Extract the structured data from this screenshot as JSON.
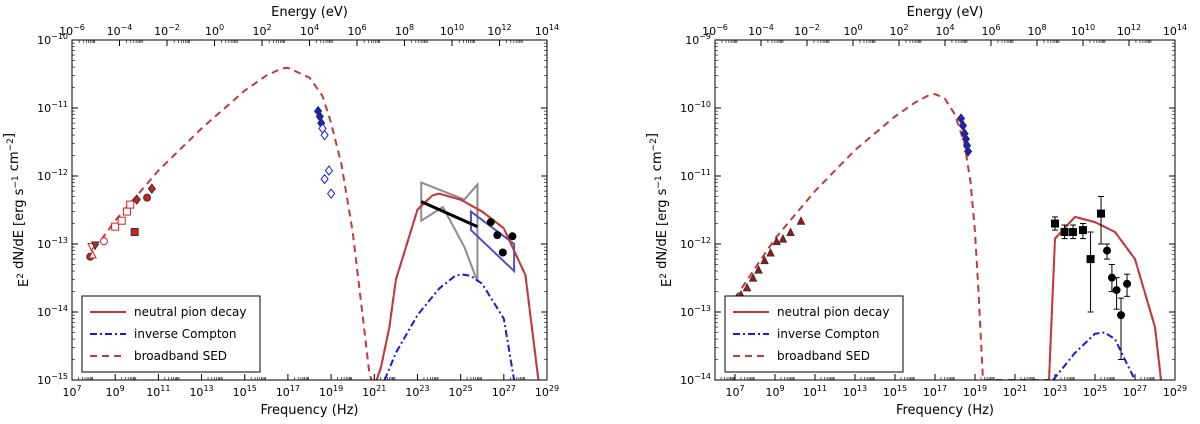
{
  "chart_data": [
    {
      "type": "line",
      "panel": "left",
      "xlabel": "Frequency (Hz)",
      "ylabel": "E^2 dN/dE [erg s^-1 cm^-2]",
      "top_xlabel": "Energy (eV)",
      "xscale": "log",
      "yscale": "log",
      "xlim": [
        10000000.0,
        1e+29
      ],
      "ylim": [
        1e-15,
        1e-10
      ],
      "top_xlim": [
        1e-06,
        100000000000000.0
      ],
      "x_ticks": [
        "10^7",
        "10^9",
        "10^11",
        "10^13",
        "10^15",
        "10^17",
        "10^19",
        "10^21",
        "10^23",
        "10^25",
        "10^27",
        "10^29"
      ],
      "y_ticks": [
        "10^-15",
        "10^-14",
        "10^-13",
        "10^-12",
        "10^-11",
        "10^-10"
      ],
      "top_ticks": [
        "10^-6",
        "10^-4",
        "10^-2",
        "10^0",
        "10^2",
        "10^4",
        "10^6",
        "10^8",
        "10^10",
        "10^12",
        "10^14"
      ],
      "legend_position": "lower-left",
      "legend": [
        {
          "name": "neutral pion decay",
          "style": "solid",
          "color": "#c1393c"
        },
        {
          "name": "inverse Compton",
          "style": "dashdot",
          "color": "#1a1adb"
        },
        {
          "name": "broadband SED",
          "style": "dashed",
          "color": "#c1393c"
        }
      ],
      "series": [
        {
          "name": "broadband SED",
          "style": "dashed",
          "color": "#c1393c",
          "x": [
            50000000.0,
            1000000000.0,
            100000000000.0,
            10000000000000.0,
            1000000000000000.0,
            1e+16,
            5e+16,
            1e+17,
            1e+18,
            4e+18,
            1e+19,
            3e+19,
            1e+20,
            3e+20,
            6e+20,
            1e+21,
            2e+21,
            5e+21,
            1e+22,
            1e+23,
            5e+23,
            1e+24,
            1e+25,
            1e+26,
            1e+27,
            1e+28,
            4e+28
          ],
          "y": [
            6e-14,
            2.2e-13,
            1.2e-12,
            5e-12,
            1.8e-11,
            3e-11,
            3.8e-11,
            3.9e-11,
            2.8e-11,
            1.5e-11,
            6e-12,
            1.5e-12,
            1.5e-13,
            8e-15,
            1.2e-15,
            8e-16,
            1.5e-15,
            6e-15,
            3e-14,
            3.2e-13,
            5.2e-13,
            5.5e-13,
            4.5e-13,
            3e-13,
            1.7e-13,
            3.5e-14,
            1e-15
          ]
        },
        {
          "name": "neutral pion decay",
          "style": "solid",
          "color": "#c1393c",
          "x": [
            1e+21,
            2e+21,
            5e+21,
            1e+22,
            1e+23,
            5e+23,
            1e+24,
            1e+25,
            1e+26,
            1e+27,
            1e+28,
            4e+28
          ],
          "y": [
            8e-16,
            1.5e-15,
            6e-15,
            3e-14,
            3.2e-13,
            5.2e-13,
            5.5e-13,
            4.5e-13,
            3e-13,
            1.7e-13,
            3.5e-14,
            1e-15
          ]
        },
        {
          "name": "inverse Compton",
          "style": "dashdot",
          "color": "#1a1adb",
          "x": [
            3e+21,
            1e+22,
            1e+23,
            1e+24,
            5e+24,
            1e+25,
            3e+25,
            1e+26,
            1e+27,
            3e+27
          ],
          "y": [
            1e-15,
            2.5e-15,
            9e-15,
            2.2e-14,
            3.3e-14,
            3.6e-14,
            3.4e-14,
            2.6e-14,
            8e-15,
            1e-15
          ]
        }
      ],
      "points": [
        {
          "x": 70000000.0,
          "y": 6.5e-14,
          "color": "#d02020",
          "filled": true,
          "marker": "circle"
        },
        {
          "x": 80000000.0,
          "y": 9e-14,
          "color": "#d02020",
          "filled": false,
          "marker": "triangle-down"
        },
        {
          "x": 90000000.0,
          "y": 7e-14,
          "color": "#d02020",
          "filled": false,
          "marker": "triangle"
        },
        {
          "x": 120000000.0,
          "y": 9.5e-14,
          "color": "#d02020",
          "filled": true,
          "marker": "triangle-down"
        },
        {
          "x": 300000000.0,
          "y": 1.1e-13,
          "color": "#d02020",
          "filled": false,
          "marker": "circle"
        },
        {
          "x": 1000000000.0,
          "y": 1.8e-13,
          "color": "#d02020",
          "filled": false,
          "marker": "square"
        },
        {
          "x": 2000000000.0,
          "y": 2.2e-13,
          "color": "#d02020",
          "filled": false,
          "marker": "square"
        },
        {
          "x": 3500000000.0,
          "y": 3e-13,
          "color": "#d02020",
          "filled": false,
          "marker": "square"
        },
        {
          "x": 5000000000.0,
          "y": 3.8e-13,
          "color": "#d02020",
          "filled": false,
          "marker": "square"
        },
        {
          "x": 8000000000.0,
          "y": 1.5e-13,
          "color": "#d02020",
          "filled": true,
          "marker": "square"
        },
        {
          "x": 10000000000.0,
          "y": 4.5e-13,
          "color": "#d02020",
          "filled": true,
          "marker": "diamond"
        },
        {
          "x": 30000000000.0,
          "y": 4.8e-13,
          "color": "#d02020",
          "filled": true,
          "marker": "circle"
        },
        {
          "x": 50000000000.0,
          "y": 6.5e-13,
          "color": "#d02020",
          "filled": true,
          "marker": "diamond"
        },
        {
          "x": 2.5e+18,
          "y": 9e-12,
          "color": "#1a1adb",
          "filled": true,
          "marker": "diamond"
        },
        {
          "x": 3e+18,
          "y": 7.5e-12,
          "color": "#1a1adb",
          "filled": true,
          "marker": "diamond"
        },
        {
          "x": 3.5e+18,
          "y": 6e-12,
          "color": "#1a1adb",
          "filled": true,
          "marker": "diamond"
        },
        {
          "x": 4e+18,
          "y": 5e-12,
          "color": "#1a1adb",
          "filled": false,
          "marker": "diamond"
        },
        {
          "x": 5e+18,
          "y": 4e-12,
          "color": "#1a1adb",
          "filled": false,
          "marker": "diamond"
        },
        {
          "x": 5e+18,
          "y": 9e-13,
          "color": "#1a1adb",
          "filled": false,
          "marker": "diamond"
        },
        {
          "x": 8e+18,
          "y": 1.2e-12,
          "color": "#1a1adb",
          "filled": false,
          "marker": "diamond"
        },
        {
          "x": 1e+19,
          "y": 5.5e-13,
          "color": "#1a1adb",
          "filled": false,
          "marker": "diamond"
        },
        {
          "x": 2.5e+26,
          "y": 2.1e-13,
          "color": "#000000",
          "filled": true,
          "marker": "circle"
        },
        {
          "x": 5e+26,
          "y": 1.35e-13,
          "color": "#000000",
          "filled": true,
          "marker": "circle"
        },
        {
          "x": 9e+26,
          "y": 7.5e-14,
          "color": "#000000",
          "filled": true,
          "marker": "circle"
        },
        {
          "x": 2.5e+27,
          "y": 1.3e-13,
          "color": "#000000",
          "filled": true,
          "marker": "circle"
        }
      ],
      "fermi_line": {
        "x": [
          1.5e+23,
          6e+25
        ],
        "y": [
          4.2e-13,
          1.8e-13
        ]
      },
      "bowtie_gray": {
        "x": [
          1.5e+23,
          1.5e+24,
          1.5e+25,
          6e+25,
          6e+25,
          1.5e+25,
          1.5e+24,
          1.5e+23
        ],
        "y": [
          8e-13,
          6e-13,
          4.5e-13,
          7.5e-13,
          2.8e-14,
          9e-14,
          3.5e-13,
          2.2e-13
        ]
      },
      "bowtie_blue": {
        "x": [
          3e+25,
          3e+27,
          3e+27,
          3e+25
        ],
        "y": [
          3e-13,
          1e-13,
          4e-14,
          1.6e-13
        ]
      }
    },
    {
      "type": "line",
      "panel": "right",
      "xlabel": "Frequency (Hz)",
      "ylabel": "E^2 dN/dE [erg s^-1 cm^-2]",
      "top_xlabel": "Energy (eV)",
      "xscale": "log",
      "yscale": "log",
      "xlim": [
        1000000.0,
        1e+29
      ],
      "ylim": [
        1e-14,
        1e-09
      ],
      "top_xlim": [
        1e-06,
        100000000000000.0
      ],
      "x_ticks": [
        "10^7",
        "10^9",
        "10^11",
        "10^13",
        "10^15",
        "10^17",
        "10^19",
        "10^21",
        "10^23",
        "10^25",
        "10^27",
        "10^29"
      ],
      "y_ticks": [
        "10^-14",
        "10^-13",
        "10^-12",
        "10^-11",
        "10^-10",
        "10^-9"
      ],
      "top_ticks": [
        "10^-6",
        "10^-4",
        "10^-2",
        "10^0",
        "10^2",
        "10^4",
        "10^6",
        "10^8",
        "10^10",
        "10^12",
        "10^14"
      ],
      "legend_position": "lower-left",
      "legend": [
        {
          "name": "neutral pion decay",
          "style": "solid",
          "color": "#c1393c"
        },
        {
          "name": "inverse Compton",
          "style": "dashdot",
          "color": "#1a1adb"
        },
        {
          "name": "broadband SED",
          "style": "dashed",
          "color": "#c1393c"
        }
      ],
      "series": [
        {
          "name": "broadband SED",
          "style": "dashed",
          "color": "#c1393c",
          "x": [
            10000000.0,
            1000000000.0,
            100000000000.0,
            10000000000000.0,
            1000000000000000.0,
            1e+16,
            5e+16,
            1e+17,
            3e+17,
            1e+18,
            3e+18,
            6e+18,
            1e+19,
            1.5e+19,
            2.5e+19,
            5e+22,
            1e+23,
            1e+24,
            1e+25,
            1e+26,
            1e+27,
            1e+28,
            2e+28
          ],
          "y": [
            1.6e-13,
            1.2e-12,
            6e-12,
            2.4e-11,
            7.5e-11,
            1.2e-10,
            1.55e-10,
            1.6e-10,
            1.4e-10,
            8e-11,
            3e-11,
            8e-12,
            1.5e-12,
            2e-13,
            1e-14,
            1e-14,
            1.2e-12,
            2.5e-12,
            2.1e-12,
            1.5e-12,
            6e-13,
            6e-14,
            1e-14
          ]
        },
        {
          "name": "neutral pion decay",
          "style": "solid",
          "color": "#c1393c",
          "x": [
            5e+22,
            1e+23,
            1e+24,
            1e+25,
            1e+26,
            1e+27,
            1e+28,
            2e+28
          ],
          "y": [
            1e-14,
            1.2e-12,
            2.5e-12,
            2.1e-12,
            1.5e-12,
            6e-13,
            6e-14,
            1e-14
          ]
        },
        {
          "name": "inverse Compton",
          "style": "dashdot",
          "color": "#1a1adb",
          "x": [
            8e+22,
            1e+24,
            1e+25,
            3e+25,
            1e+26,
            5e+26,
            1e+27
          ],
          "y": [
            1e-14,
            2.5e-14,
            4.8e-14,
            5e-14,
            4e-14,
            1.5e-14,
            1e-14
          ]
        }
      ],
      "points": [
        {
          "x": 12000000.0,
          "y": 1.6e-13,
          "color": "#b01010",
          "filled": true,
          "marker": "triangle"
        },
        {
          "x": 20000000.0,
          "y": 1.8e-13,
          "color": "#b01010",
          "filled": true,
          "marker": "triangle"
        },
        {
          "x": 40000000.0,
          "y": 2.3e-13,
          "color": "#b01010",
          "filled": true,
          "marker": "triangle"
        },
        {
          "x": 80000000.0,
          "y": 3.2e-13,
          "color": "#b01010",
          "filled": true,
          "marker": "triangle"
        },
        {
          "x": 150000000.0,
          "y": 4.2e-13,
          "color": "#b01010",
          "filled": true,
          "marker": "triangle"
        },
        {
          "x": 300000000.0,
          "y": 5.8e-13,
          "color": "#b01010",
          "filled": true,
          "marker": "triangle"
        },
        {
          "x": 600000000.0,
          "y": 7.5e-13,
          "color": "#b01010",
          "filled": true,
          "marker": "triangle"
        },
        {
          "x": 1200000000.0,
          "y": 1.1e-12,
          "color": "#b01010",
          "filled": true,
          "marker": "triangle"
        },
        {
          "x": 2500000000.0,
          "y": 1.2e-12,
          "color": "#b01010",
          "filled": true,
          "marker": "triangle"
        },
        {
          "x": 6000000000.0,
          "y": 1.5e-12,
          "color": "#b01010",
          "filled": true,
          "marker": "triangle"
        },
        {
          "x": 20000000000.0,
          "y": 2.2e-12,
          "color": "#b01010",
          "filled": true,
          "marker": "triangle"
        },
        {
          "x": 2e+18,
          "y": 7e-11,
          "color": "#1a1adb",
          "filled": true,
          "marker": "diamond"
        },
        {
          "x": 2.5e+18,
          "y": 5.5e-11,
          "color": "#1a1adb",
          "filled": true,
          "marker": "diamond"
        },
        {
          "x": 3e+18,
          "y": 4.2e-11,
          "color": "#1a1adb",
          "filled": true,
          "marker": "diamond"
        },
        {
          "x": 3.5e+18,
          "y": 3.5e-11,
          "color": "#1a1adb",
          "filled": true,
          "marker": "diamond"
        },
        {
          "x": 4e+18,
          "y": 2.8e-11,
          "color": "#1a1adb",
          "filled": true,
          "marker": "diamond"
        },
        {
          "x": 4.5e+18,
          "y": 2.3e-11,
          "color": "#1a1adb",
          "filled": true,
          "marker": "diamond"
        }
      ],
      "error_points": [
        {
          "x": 1e+23,
          "y": 2e-12,
          "lo": 1.6e-12,
          "hi": 2.5e-12,
          "marker": "square"
        },
        {
          "x": 3e+23,
          "y": 1.5e-12,
          "lo": 1.2e-12,
          "hi": 1.9e-12,
          "marker": "square"
        },
        {
          "x": 8e+23,
          "y": 1.5e-12,
          "lo": 1.2e-12,
          "hi": 1.9e-12,
          "marker": "square"
        },
        {
          "x": 2.5e+24,
          "y": 1.6e-12,
          "lo": 1.2e-12,
          "hi": 2e-12,
          "marker": "square"
        },
        {
          "x": 6e+24,
          "y": 6e-13,
          "lo": 1e-13,
          "hi": 1.5e-12,
          "marker": "square"
        },
        {
          "x": 2e+25,
          "y": 2.8e-12,
          "lo": 1e-12,
          "hi": 5e-12,
          "marker": "square"
        },
        {
          "x": 4e+25,
          "y": 8e-13,
          "lo": 6e-13,
          "hi": 1e-12,
          "marker": "circle"
        },
        {
          "x": 7e+25,
          "y": 3.2e-13,
          "lo": 2e-13,
          "hi": 5e-13,
          "marker": "circle"
        },
        {
          "x": 1.2e+26,
          "y": 2.1e-13,
          "lo": 1.1e-13,
          "hi": 3.2e-13,
          "marker": "circle"
        },
        {
          "x": 2e+26,
          "y": 9e-14,
          "lo": 2e-14,
          "hi": 1.6e-13,
          "marker": "circle"
        },
        {
          "x": 4e+26,
          "y": 2.6e-13,
          "lo": 1.7e-13,
          "hi": 3.6e-13,
          "marker": "circle"
        }
      ]
    }
  ]
}
